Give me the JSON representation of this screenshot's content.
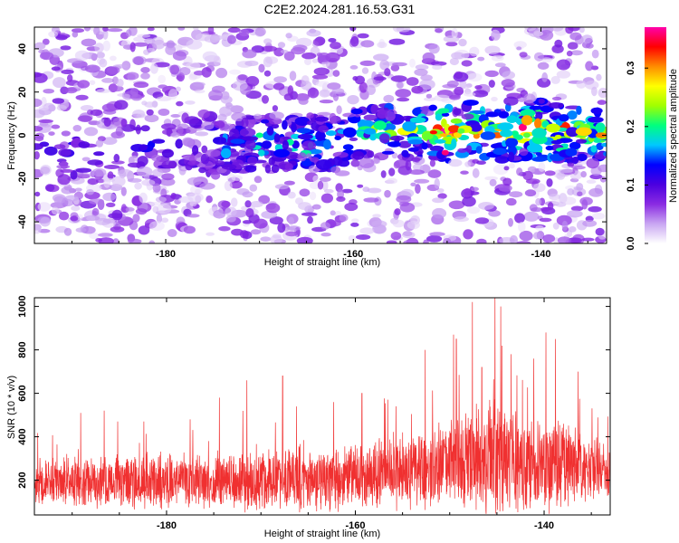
{
  "figure": {
    "title": "C2E2.2024.281.16.53.G31"
  },
  "chart_data": [
    {
      "type": "heatmap",
      "xlabel": "Height of straight line (km)",
      "ylabel": "Frequency (Hz)",
      "xlim": [
        -194,
        -133
      ],
      "ylim": [
        -50,
        50
      ],
      "x_ticks": [
        -180,
        -160,
        -140
      ],
      "y_ticks": [
        -40,
        -20,
        0,
        20,
        40
      ],
      "grid": false,
      "colorbar": {
        "label": "Normalized spectral amplitude",
        "range": [
          0.0,
          0.37
        ],
        "ticks": [
          0.0,
          0.1,
          0.2,
          0.3
        ],
        "colormap": [
          "#ffffff",
          "#c9a6f2",
          "#8a2be2",
          "#4b00e0",
          "#0000ff",
          "#00c8ff",
          "#00ff7f",
          "#a0ff00",
          "#ffff00",
          "#ff8c00",
          "#ff0000",
          "#ff00aa"
        ]
      },
      "notes": "Noisy spectrogram; higher amplitude band concentrated near 0 Hz between -175 and -133 km, peak near -150 km"
    },
    {
      "type": "line",
      "xlabel": "Height of straight line (km)",
      "ylabel": "SNR (10 * v/v)",
      "xlim": [
        -194,
        -133
      ],
      "ylim": [
        40,
        1040
      ],
      "x_ticks": [
        -180,
        -160,
        -140
      ],
      "y_ticks": [
        200,
        400,
        600,
        800,
        1000
      ],
      "grid": false,
      "line_color": "#f03030",
      "envelope": {
        "x": [
          -194,
          -185,
          -176,
          -168,
          -162,
          -157,
          -152,
          -148,
          -145,
          -142,
          -139,
          -136,
          -133
        ],
        "baseline": [
          190,
          190,
          200,
          200,
          210,
          230,
          260,
          290,
          290,
          280,
          280,
          260,
          240
        ],
        "amplitude": [
          200,
          230,
          240,
          280,
          280,
          300,
          340,
          470,
          520,
          400,
          440,
          320,
          240
        ]
      },
      "peaks": [
        {
          "x": -145.2,
          "y": 1040
        },
        {
          "x": -147.6,
          "y": 1020
        },
        {
          "x": -144.6,
          "y": 1000
        },
        {
          "x": -149.3,
          "y": 850
        },
        {
          "x": -139.8,
          "y": 880
        },
        {
          "x": -138.8,
          "y": 850
        },
        {
          "x": -141.1,
          "y": 760
        },
        {
          "x": -152.6,
          "y": 800
        },
        {
          "x": -149.6,
          "y": 870
        },
        {
          "x": -143.5,
          "y": 780
        },
        {
          "x": -146.6,
          "y": 720
        },
        {
          "x": -136.4,
          "y": 700
        },
        {
          "x": -171.5,
          "y": 660
        },
        {
          "x": -167.7,
          "y": 680
        },
        {
          "x": -174.4,
          "y": 580
        },
        {
          "x": -159.3,
          "y": 600
        },
        {
          "x": -162.3,
          "y": 560
        },
        {
          "x": -155.7,
          "y": 540
        },
        {
          "x": -186.6,
          "y": 520
        },
        {
          "x": -189.1,
          "y": 510
        },
        {
          "x": -177.5,
          "y": 480
        },
        {
          "x": -182.4,
          "y": 470
        }
      ]
    }
  ]
}
